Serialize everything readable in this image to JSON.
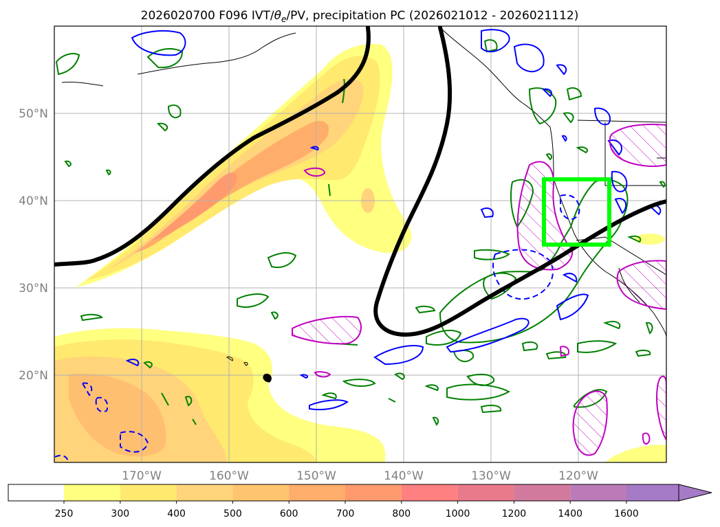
{
  "title": "2026020700 F096 IVT/θe/PV, precipitation PC (2026021012 - 2026021112)",
  "title_parts": {
    "prefix": "2026020700 F096 IVT/",
    "theta": "θ",
    "theta_sub": "e",
    "suffix": "/PV, precipitation PC (2026021012 - 2026021112)"
  },
  "map": {
    "projection": "PlateCarree",
    "lon_range": [
      -180,
      -110
    ],
    "lat_range": [
      10,
      60
    ],
    "gridlines": true,
    "lat_labels": [
      "20°N",
      "30°N",
      "40°N",
      "50°N"
    ],
    "lat_values": [
      20,
      30,
      40,
      50
    ],
    "lon_labels": [
      "170°W",
      "160°W",
      "150°W",
      "140°W",
      "130°W",
      "120°W"
    ],
    "lon_values": [
      -170,
      -160,
      -150,
      -140,
      -130,
      -120
    ],
    "highlight_box": {
      "lon": [
        -124,
        -116.5
      ],
      "lat": [
        35,
        42.5
      ],
      "color": "#00ff00"
    }
  },
  "colorbar": {
    "levels": [
      "250",
      "300",
      "400",
      "500",
      "600",
      "700",
      "800",
      "1000",
      "1200",
      "1400",
      "1600"
    ],
    "colors": [
      "#ffffff",
      "#ffff80",
      "#ffe96e",
      "#ffd47a",
      "#ffc46e",
      "#ffad6a",
      "#ff9a6e",
      "#ff8080",
      "#e87a8c",
      "#d27a9e",
      "#bb7ab8",
      "#a57ac6"
    ],
    "extend": "max"
  },
  "legend_colors": {
    "theta_e": "#008000",
    "pv": "#0000ff",
    "precip": "#bf00bf",
    "jet_axis": "#000000"
  }
}
